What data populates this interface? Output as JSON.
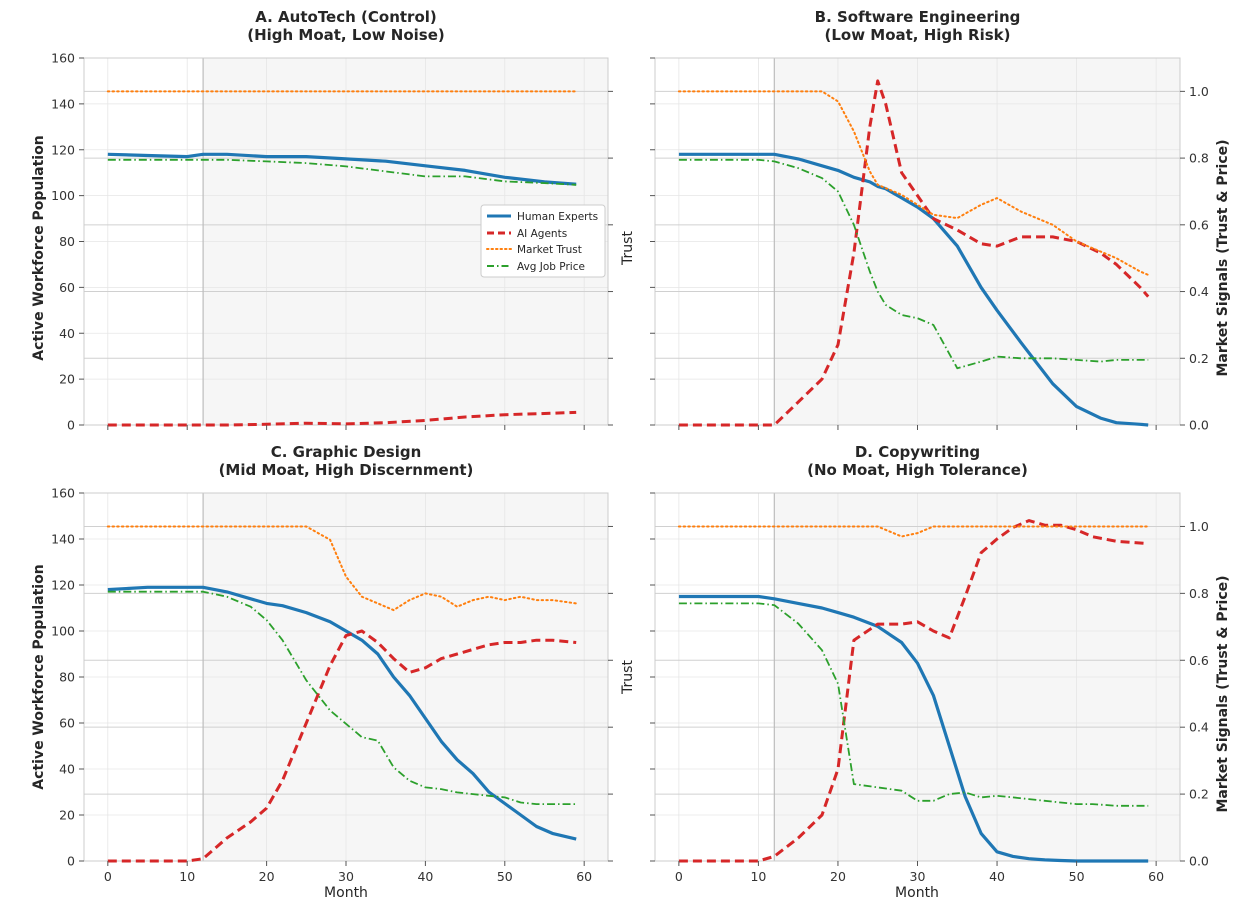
{
  "figure": {
    "left_ylabel": "Active Workforce Population",
    "right_ylabel": "Market Signals (Trust & Price)",
    "twin_label": "Trust",
    "xlabel": "Month"
  },
  "legend": {
    "human": "Human Experts",
    "ai": "AI Agents",
    "trust": "Market Trust",
    "price": "Avg Job Price"
  },
  "colors": {
    "human": "#1f77b4",
    "ai": "#d62728",
    "trust": "#ff7f0e",
    "price": "#2ca02c",
    "shade": "#f6f6f6",
    "grid": "#e6e6e6"
  },
  "chart_data": [
    {
      "type": "line",
      "title": "A. AutoTech (Control)",
      "subtitle": "(High Moat, Low Noise)",
      "xlabel": "",
      "ylabel": "Active Workforce Population",
      "y2label": "",
      "xlim": [
        -3,
        63
      ],
      "ylim": [
        0,
        160
      ],
      "y2lim": [
        0,
        1.1
      ],
      "x": [
        0,
        5,
        10,
        12,
        15,
        20,
        25,
        30,
        35,
        40,
        45,
        50,
        55,
        59
      ],
      "series": [
        {
          "name": "Human Experts",
          "axis": "left",
          "values": [
            118,
            117.5,
            117,
            118,
            118,
            117,
            117,
            116,
            115,
            113,
            111,
            108,
            106,
            105
          ]
        },
        {
          "name": "AI Agents",
          "axis": "left",
          "values": [
            0,
            0,
            0,
            0,
            0,
            0.3,
            0.8,
            0.5,
            1,
            2,
            3.5,
            4.5,
            5,
            5.5
          ]
        },
        {
          "name": "Market Trust",
          "axis": "right",
          "values": [
            1.0,
            1.0,
            1.0,
            1.0,
            1.0,
            1.0,
            1.0,
            1.0,
            1.0,
            1.0,
            1.0,
            1.0,
            1.0,
            1.0
          ]
        },
        {
          "name": "Avg Job Price",
          "axis": "right",
          "values": [
            0.795,
            0.795,
            0.795,
            0.795,
            0.795,
            0.79,
            0.785,
            0.775,
            0.76,
            0.745,
            0.745,
            0.73,
            0.725,
            0.72
          ]
        }
      ],
      "xticks": [
        0,
        10,
        20,
        30,
        40,
        50,
        60
      ],
      "yticks": [
        0,
        20,
        40,
        60,
        80,
        100,
        120,
        140,
        160
      ],
      "y2ticks": [],
      "show_xticklabels": false,
      "legend": "center-right"
    },
    {
      "type": "line",
      "title": "B. Software Engineering",
      "subtitle": "(Low Moat, High Risk)",
      "xlabel": "",
      "ylabel": "",
      "y2label": "Market Signals (Trust & Price)",
      "xlim": [
        -3,
        63
      ],
      "ylim": [
        0,
        160
      ],
      "y2lim": [
        0,
        1.1
      ],
      "x": [
        0,
        5,
        10,
        12,
        15,
        18,
        20,
        22,
        24,
        25,
        26,
        28,
        30,
        32,
        35,
        38,
        40,
        43,
        47,
        50,
        53,
        55,
        58,
        59
      ],
      "series": [
        {
          "name": "Human Experts",
          "axis": "left",
          "values": [
            118,
            118,
            118,
            118,
            116,
            113,
            111,
            108,
            106,
            104,
            103,
            99,
            95,
            90,
            78,
            60,
            50,
            36,
            18,
            8,
            3,
            1,
            0.3,
            0
          ],
          "line_values_note": "counts"
        },
        {
          "name": "AI Agents",
          "axis": "left",
          "values": [
            0,
            0,
            0,
            0,
            10,
            20,
            35,
            75,
            130,
            150,
            140,
            110,
            100,
            90,
            85,
            79,
            78,
            82,
            82,
            80,
            75,
            70,
            60,
            56
          ]
        },
        {
          "name": "Market Trust",
          "axis": "right",
          "values": [
            1.0,
            1.0,
            1.0,
            1.0,
            1.0,
            1.0,
            0.97,
            0.88,
            0.76,
            0.72,
            0.71,
            0.69,
            0.66,
            0.63,
            0.62,
            0.66,
            0.68,
            0.64,
            0.6,
            0.55,
            0.52,
            0.5,
            0.46,
            0.45
          ]
        },
        {
          "name": "Avg Job Price",
          "axis": "right",
          "values": [
            0.795,
            0.795,
            0.795,
            0.79,
            0.77,
            0.74,
            0.7,
            0.6,
            0.46,
            0.4,
            0.36,
            0.33,
            0.32,
            0.3,
            0.17,
            0.19,
            0.205,
            0.2,
            0.2,
            0.195,
            0.19,
            0.195,
            0.195,
            0.195
          ]
        }
      ],
      "xticks": [
        0,
        10,
        20,
        30,
        40,
        50,
        60
      ],
      "yticks": [],
      "y2ticks": [
        0.0,
        0.2,
        0.4,
        0.6,
        0.8,
        1.0
      ],
      "show_xticklabels": false
    },
    {
      "type": "line",
      "title": "C. Graphic Design",
      "subtitle": "(Mid Moat, High Discernment)",
      "xlabel": "Month",
      "ylabel": "Active Workforce Population",
      "y2label": "",
      "xlim": [
        -3,
        63
      ],
      "ylim": [
        0,
        160
      ],
      "y2lim": [
        0,
        1.1
      ],
      "x": [
        0,
        5,
        10,
        12,
        15,
        18,
        20,
        22,
        25,
        28,
        30,
        32,
        34,
        36,
        38,
        40,
        42,
        44,
        46,
        48,
        50,
        52,
        54,
        56,
        59
      ],
      "series": [
        {
          "name": "Human Experts",
          "axis": "left",
          "values": [
            118,
            119,
            119,
            119,
            117,
            114,
            112,
            111,
            108,
            104,
            100,
            96,
            90,
            80,
            72,
            62,
            52,
            44,
            38,
            30,
            25,
            20,
            15,
            12,
            9.5
          ]
        },
        {
          "name": "AI Agents",
          "axis": "left",
          "values": [
            0,
            0,
            0,
            1,
            10,
            17,
            23,
            35,
            60,
            85,
            98,
            100,
            95,
            88,
            82,
            84,
            88,
            90,
            92,
            94,
            95,
            95,
            96,
            96,
            95
          ]
        },
        {
          "name": "Market Trust",
          "axis": "right",
          "values": [
            1.0,
            1.0,
            1.0,
            1.0,
            1.0,
            1.0,
            1.0,
            1.0,
            1.0,
            0.96,
            0.85,
            0.79,
            0.77,
            0.75,
            0.78,
            0.8,
            0.79,
            0.76,
            0.78,
            0.79,
            0.78,
            0.79,
            0.78,
            0.78,
            0.77
          ]
        },
        {
          "name": "Avg Job Price",
          "axis": "right",
          "values": [
            0.805,
            0.805,
            0.805,
            0.805,
            0.79,
            0.76,
            0.72,
            0.66,
            0.54,
            0.45,
            0.41,
            0.37,
            0.36,
            0.28,
            0.24,
            0.22,
            0.215,
            0.205,
            0.2,
            0.195,
            0.19,
            0.175,
            0.17,
            0.17,
            0.17
          ]
        }
      ],
      "xticks": [
        0,
        10,
        20,
        30,
        40,
        50,
        60
      ],
      "yticks": [
        0,
        20,
        40,
        60,
        80,
        100,
        120,
        140,
        160
      ],
      "y2ticks": [],
      "show_xticklabels": true
    },
    {
      "type": "line",
      "title": "D. Copywriting",
      "subtitle": "(No Moat, High Tolerance)",
      "xlabel": "Month",
      "ylabel": "",
      "y2label": "Market Signals (Trust & Price)",
      "xlim": [
        -3,
        63
      ],
      "ylim": [
        0,
        160
      ],
      "y2lim": [
        0,
        1.1
      ],
      "x": [
        0,
        5,
        10,
        12,
        15,
        18,
        20,
        22,
        25,
        28,
        30,
        32,
        34,
        36,
        38,
        40,
        42,
        44,
        46,
        48,
        50,
        52,
        55,
        59
      ],
      "series": [
        {
          "name": "Human Experts",
          "axis": "left",
          "values": [
            115,
            115,
            115,
            114,
            112,
            110,
            108,
            106,
            102,
            95,
            86,
            72,
            50,
            28,
            12,
            4,
            2,
            1,
            0.5,
            0.2,
            0,
            0,
            0,
            0
          ]
        },
        {
          "name": "AI Agents",
          "axis": "left",
          "values": [
            0,
            0,
            0,
            2,
            10,
            20,
            40,
            96,
            103,
            103,
            104,
            100,
            97,
            115,
            134,
            140,
            145,
            148,
            146,
            146,
            144,
            141,
            139,
            138
          ]
        },
        {
          "name": "Market Trust",
          "axis": "right",
          "values": [
            1.0,
            1.0,
            1.0,
            1.0,
            1.0,
            1.0,
            1.0,
            1.0,
            1.0,
            0.97,
            0.98,
            1.0,
            1.0,
            1.0,
            1.0,
            1.0,
            1.0,
            1.0,
            1.0,
            1.0,
            1.0,
            1.0,
            1.0,
            1.0
          ]
        },
        {
          "name": "Avg Job Price",
          "axis": "right",
          "values": [
            0.77,
            0.77,
            0.77,
            0.765,
            0.71,
            0.63,
            0.53,
            0.23,
            0.22,
            0.21,
            0.18,
            0.18,
            0.2,
            0.205,
            0.19,
            0.195,
            0.19,
            0.185,
            0.18,
            0.175,
            0.17,
            0.17,
            0.165,
            0.165
          ]
        }
      ],
      "xticks": [
        0,
        10,
        20,
        30,
        40,
        50,
        60
      ],
      "yticks": [],
      "y2ticks": [
        0.0,
        0.2,
        0.4,
        0.6,
        0.8,
        1.0
      ],
      "show_xticklabels": true
    }
  ]
}
